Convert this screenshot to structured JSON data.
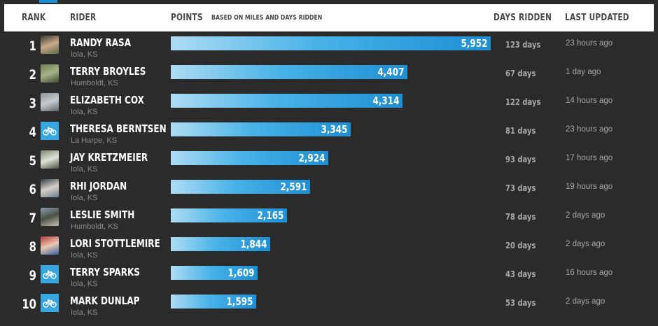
{
  "header": {
    "rank": "RANK",
    "rider": "RIDER",
    "points": "POINTS",
    "points_note": "BASED ON MILES AND DAYS RIDDEN",
    "days_ridden": "DAYS RIDDEN",
    "last_updated": "LAST UPDATED"
  },
  "chart_data": {
    "type": "bar",
    "title": "",
    "categories": [
      "RANDY RASA",
      "TERRY BROYLES",
      "ELIZABETH COX",
      "THERESA BERNTSEN",
      "JAY KRETZMEIER",
      "RHI JORDAN",
      "LESLIE SMITH",
      "LORI STOTTLEMIRE",
      "TERRY SPARKS",
      "MARK DUNLAP"
    ],
    "values": [
      5952,
      4407,
      4314,
      3345,
      2924,
      2591,
      2165,
      1844,
      1609,
      1595
    ],
    "xlabel": "",
    "ylabel": "POINTS"
  },
  "riders": [
    {
      "rank": "1",
      "name": "RANDY RASA",
      "location": "Iola, KS",
      "points": 5952,
      "points_label": "5,952",
      "days": "123 days",
      "updated": "23 hours ago",
      "avatar": "photo",
      "avatar_colors": [
        "#3b3a34",
        "#c9a98a",
        "#5a6b4a"
      ]
    },
    {
      "rank": "2",
      "name": "TERRY BROYLES",
      "location": "Humboldt, KS",
      "points": 4407,
      "points_label": "4,407",
      "days": "67 days",
      "updated": "1 day ago",
      "avatar": "photo",
      "avatar_colors": [
        "#6d7f4f",
        "#a7b38a",
        "#3f4b2f"
      ]
    },
    {
      "rank": "3",
      "name": "ELIZABETH COX",
      "location": "Iola, KS",
      "points": 4314,
      "points_label": "4,314",
      "days": "122 days",
      "updated": "14 hours ago",
      "avatar": "photo",
      "avatar_colors": [
        "#8f969b",
        "#c6cccf",
        "#5e6569"
      ]
    },
    {
      "rank": "4",
      "name": "THERESA BERNTSEN",
      "location": "La Harpe, KS",
      "points": 3345,
      "points_label": "3,345",
      "days": "81 days",
      "updated": "23 hours ago",
      "avatar": "default"
    },
    {
      "rank": "5",
      "name": "JAY KRETZMEIER",
      "location": "Iola, KS",
      "points": 2924,
      "points_label": "2,924",
      "days": "93 days",
      "updated": "17 hours ago",
      "avatar": "photo",
      "avatar_colors": [
        "#7c8a6a",
        "#e0e0dc",
        "#4a5240"
      ]
    },
    {
      "rank": "6",
      "name": "RHI JORDAN",
      "location": "Iola, KS",
      "points": 2591,
      "points_label": "2,591",
      "days": "73 days",
      "updated": "19 hours ago",
      "avatar": "photo",
      "avatar_colors": [
        "#2f3a45",
        "#d8d0c8",
        "#6a7d8c"
      ]
    },
    {
      "rank": "7",
      "name": "LESLIE SMITH",
      "location": "Humboldt, KS",
      "points": 2165,
      "points_label": "2,165",
      "days": "78 days",
      "updated": "2 days ago",
      "avatar": "photo",
      "avatar_colors": [
        "#8b9fb4",
        "#4b4f45",
        "#c8c2b0"
      ]
    },
    {
      "rank": "8",
      "name": "LORI STOTTLEMIRE",
      "location": "Iola, KS",
      "points": 1844,
      "points_label": "1,844",
      "days": "20 days",
      "updated": "2 days ago",
      "avatar": "photo",
      "avatar_colors": [
        "#b23b3b",
        "#e9c7b2",
        "#3a5fa0"
      ]
    },
    {
      "rank": "9",
      "name": "TERRY SPARKS",
      "location": "Iola, KS",
      "points": 1609,
      "points_label": "1,609",
      "days": "43 days",
      "updated": "16 hours ago",
      "avatar": "default"
    },
    {
      "rank": "10",
      "name": "MARK DUNLAP",
      "location": "Iola, KS",
      "points": 1595,
      "points_label": "1,595",
      "days": "53 days",
      "updated": "2 days ago",
      "avatar": "default"
    }
  ],
  "colors": {
    "background": "#2b2b2b",
    "header_bg": "#ffffff",
    "bar_start": "#aedcf4",
    "bar_end": "#1e8fd4",
    "default_avatar": "#39a7df"
  },
  "icons": {
    "default_avatar": "bicycle-icon"
  }
}
